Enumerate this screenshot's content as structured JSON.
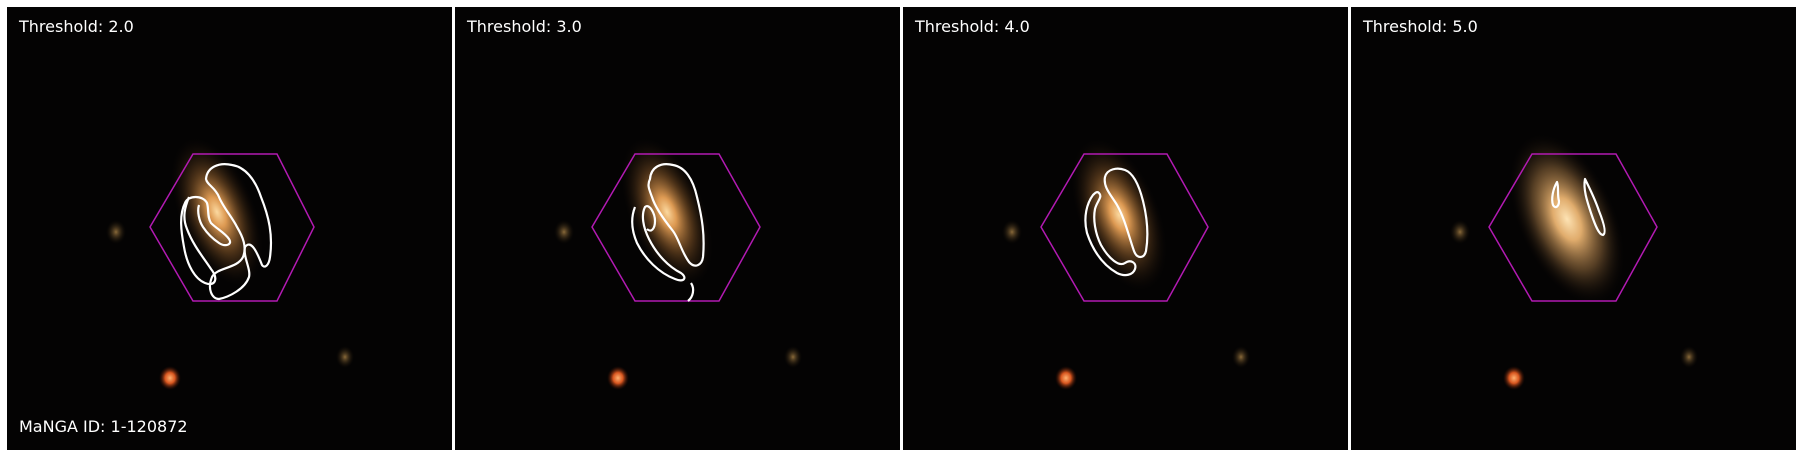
{
  "panels": [
    {
      "threshold_label": "Threshold: 2.0"
    },
    {
      "threshold_label": "Threshold: 3.0"
    },
    {
      "threshold_label": "Threshold: 4.0"
    },
    {
      "threshold_label": "Threshold: 5.0"
    }
  ],
  "manga_id_label": "MaNGA ID: 1-120872",
  "colors": {
    "background": "#040303",
    "hexagon": "#b21ab2",
    "contour": "#ffffff",
    "galaxy_core": "#f6c98a",
    "star_orange": "#e0652a"
  }
}
